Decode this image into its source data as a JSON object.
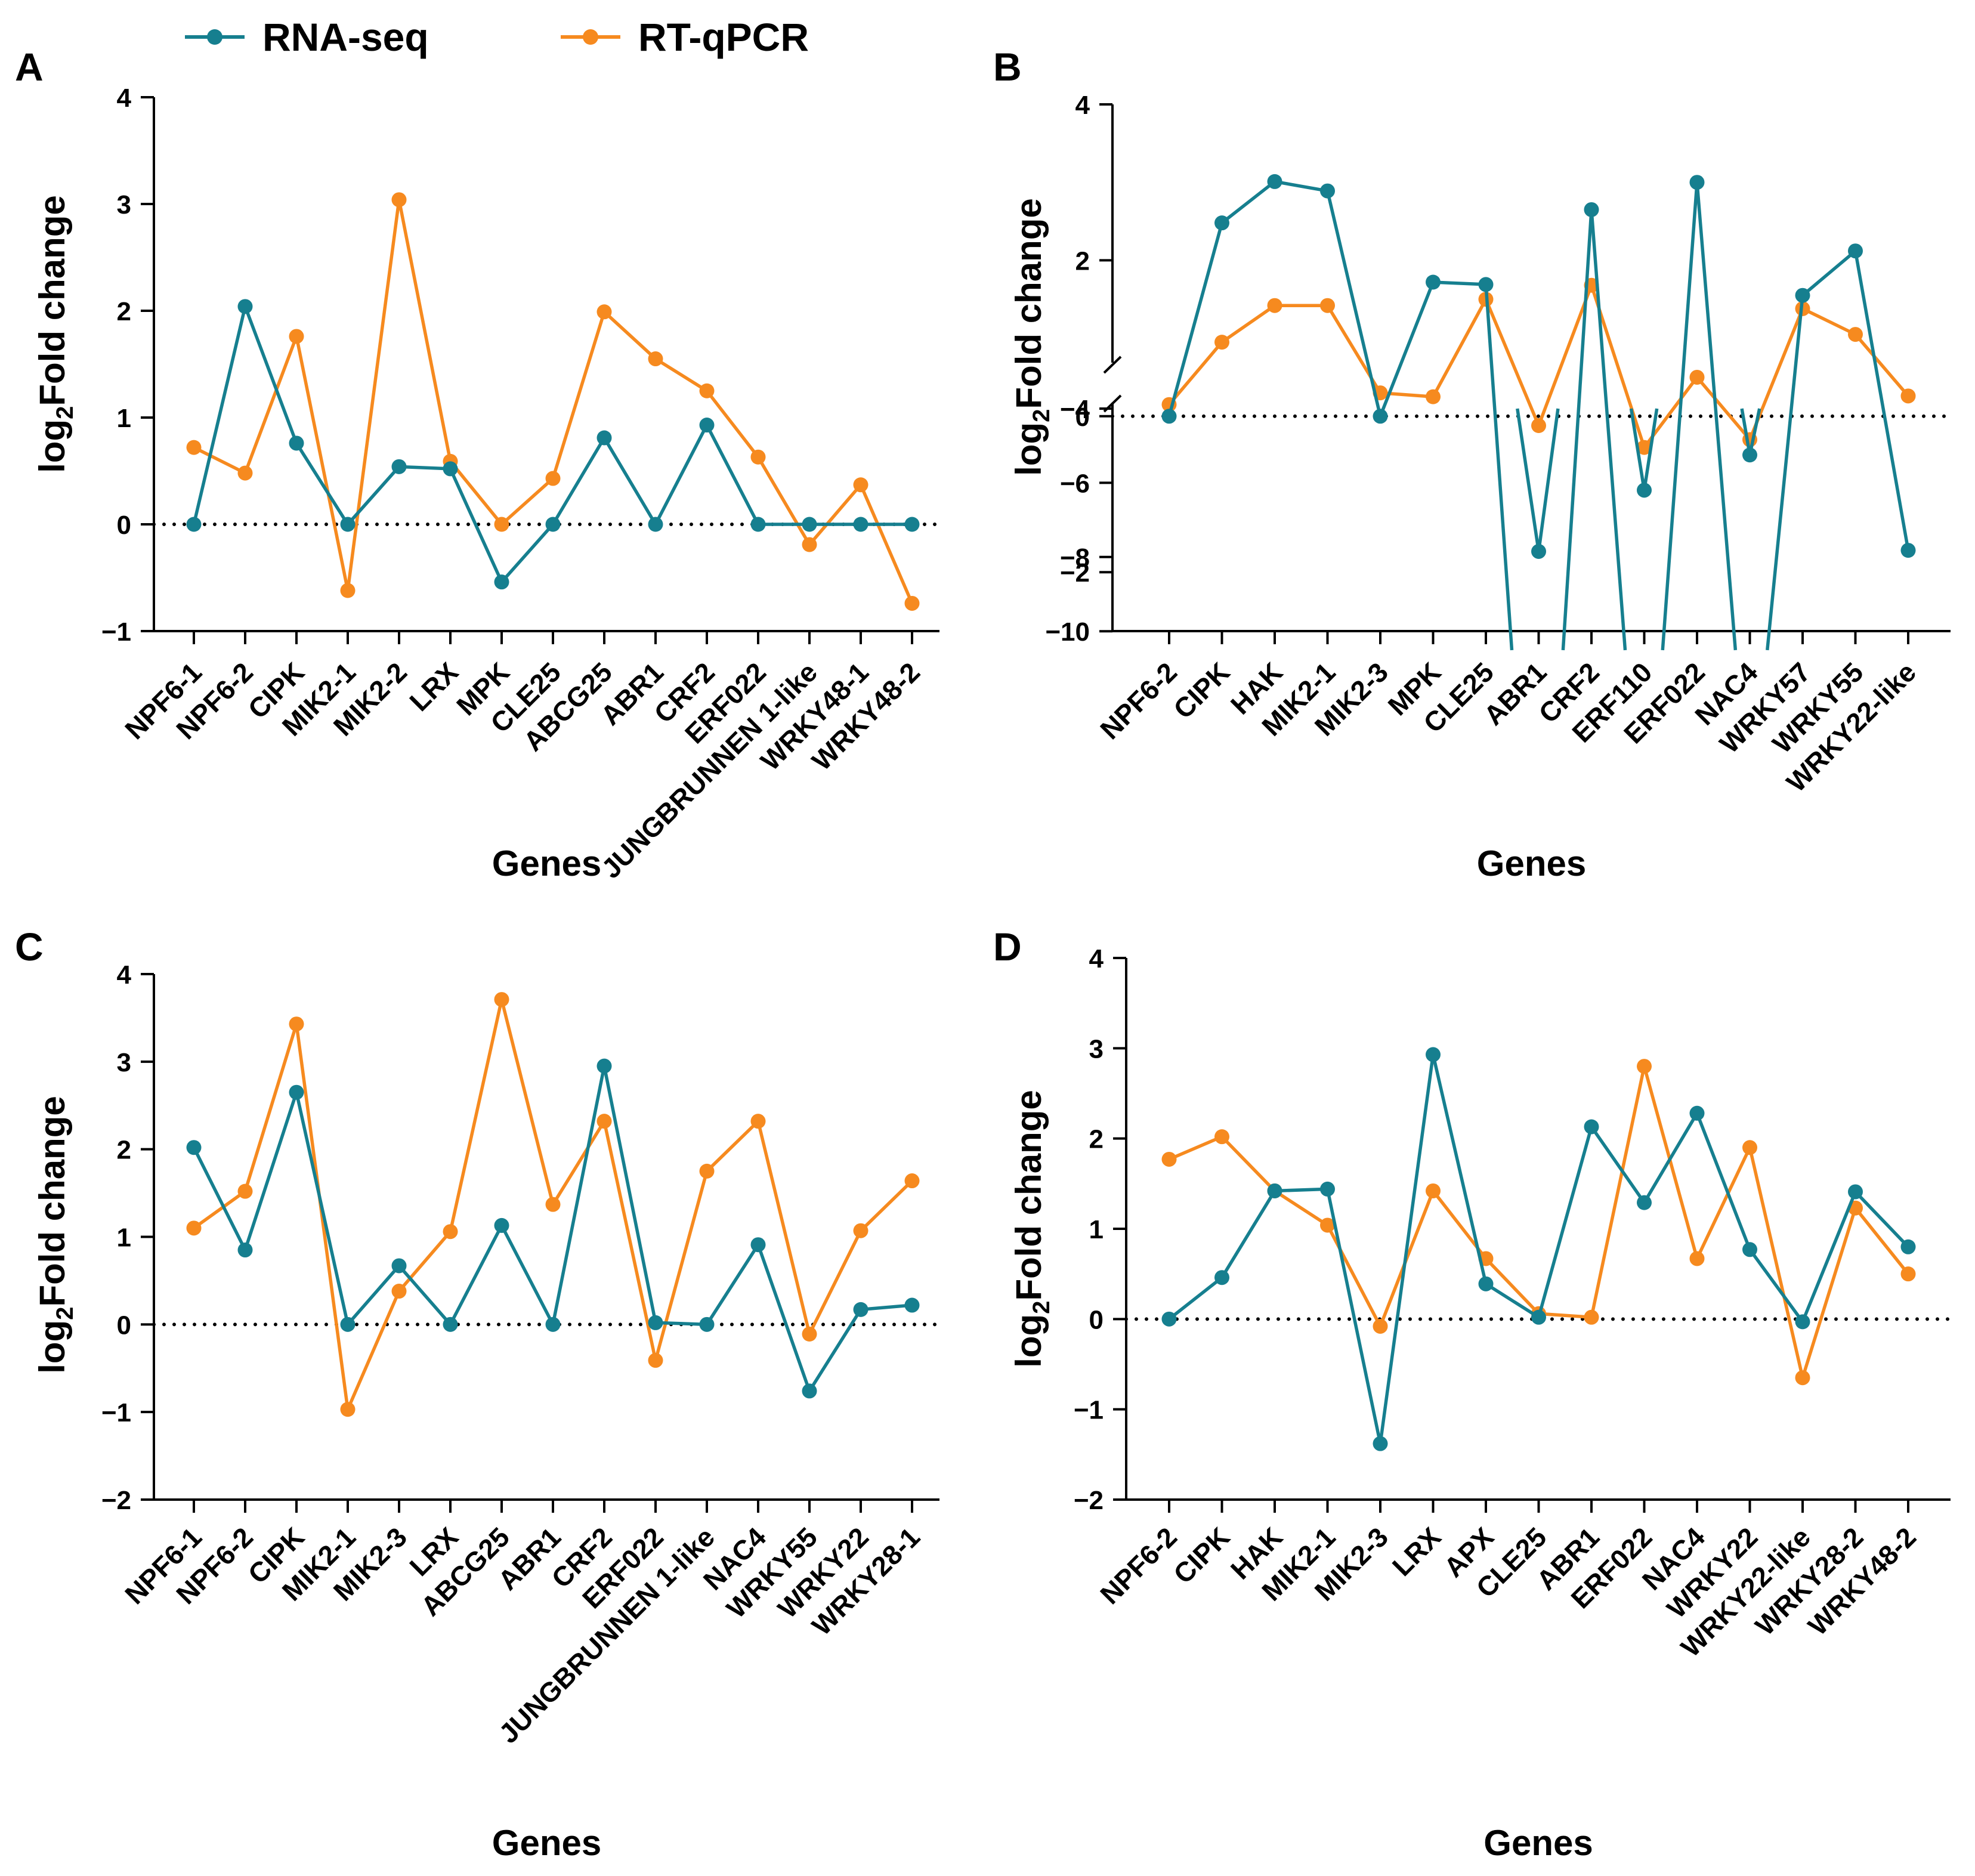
{
  "legend": [
    {
      "name": "RNA-seq",
      "color": "#167f8f"
    },
    {
      "name": "RT-qPCR",
      "color": "#f68a1f"
    }
  ],
  "chart_data": [
    {
      "panel": "A",
      "type": "line",
      "xlabel": "Genes",
      "ylabel_main": "log",
      "ylabel_sub": "2",
      "ylabel_rest": "Fold change",
      "ylim": [
        -1,
        4
      ],
      "yticks": [
        "−1",
        "0",
        "1",
        "2",
        "3",
        "4"
      ],
      "categories": [
        "NPF6-1",
        "NPF6-2",
        "CIPK",
        "MIK2-1",
        "MIK2-2",
        "LRX",
        "MPK",
        "CLE25",
        "ABCG25",
        "ABR1",
        "CRF2",
        "ERF022",
        "JUNGBRUNNEN 1-like",
        "WRKY48-1",
        "WRKY48-2"
      ],
      "series": [
        {
          "name": "RNA-seq",
          "values": [
            0,
            2.04,
            0.76,
            0,
            0.54,
            0.52,
            -0.54,
            0,
            0.81,
            0,
            0.93,
            0,
            0,
            0,
            0
          ]
        },
        {
          "name": "RT-qPCR",
          "values": [
            0.72,
            0.48,
            1.76,
            -0.62,
            3.04,
            0.59,
            0,
            0.43,
            1.99,
            1.55,
            1.25,
            0.63,
            -0.19,
            0.37,
            -0.74
          ]
        }
      ]
    },
    {
      "panel": "B",
      "type": "line",
      "xlabel": "Genes",
      "ylabel_main": "log",
      "ylabel_sub": "2",
      "ylabel_rest": "Fold change",
      "ylim": [
        -10,
        4
      ],
      "axis_break": [
        -3,
        -4
      ],
      "yticks": [
        "−10",
        "−8",
        "−6",
        "−4",
        "−2",
        "0",
        "2",
        "4"
      ],
      "categories": [
        "NPF6-2",
        "CIPK",
        "HAK",
        "MIK2-1",
        "MIK2-3",
        "MPK",
        "CLE25",
        "ABR1",
        "CRF2",
        "ERF110",
        "ERF022",
        "NAC4",
        "WRKY57",
        "WRKY55",
        "WRKY22-like"
      ],
      "series": [
        {
          "name": "RNA-seq",
          "values": [
            0,
            2.48,
            3.01,
            2.89,
            0,
            1.72,
            1.69,
            -7.85,
            2.65,
            -6.2,
            3.0,
            -5.25,
            1.55,
            2.12,
            -1.72
          ]
        },
        {
          "name": "RT-qPCR",
          "values": [
            0.15,
            0.95,
            1.42,
            1.42,
            0.3,
            0.25,
            1.5,
            -0.12,
            1.68,
            -0.4,
            0.5,
            -0.3,
            1.38,
            1.05,
            0.26
          ]
        }
      ]
    },
    {
      "panel": "C",
      "type": "line",
      "xlabel": "Genes",
      "ylabel_main": "log",
      "ylabel_sub": "2",
      "ylabel_rest": "Fold change",
      "ylim": [
        -2,
        4
      ],
      "yticks": [
        "−2",
        "−1",
        "0",
        "1",
        "2",
        "3",
        "4"
      ],
      "categories": [
        "NPF6-1",
        "NPF6-2",
        "CIPK",
        "MIK2-1",
        "MIK2-3",
        "LRX",
        "ABCG25",
        "ABR1",
        "CRF2",
        "ERF022",
        "JUNGBRUNNEN 1-like",
        "NAC4",
        "WRKY55",
        "WRKY22",
        "WRKY28-1"
      ],
      "series": [
        {
          "name": "RNA-seq",
          "values": [
            2.02,
            0.85,
            2.65,
            0,
            0.67,
            0,
            1.13,
            0,
            2.95,
            0.02,
            0,
            0.91,
            -0.76,
            0.17,
            0.22
          ]
        },
        {
          "name": "RT-qPCR",
          "values": [
            1.1,
            1.52,
            3.43,
            -0.97,
            0.38,
            1.06,
            3.71,
            1.37,
            2.32,
            -0.41,
            1.75,
            2.32,
            -0.11,
            1.07,
            1.64
          ]
        }
      ]
    },
    {
      "panel": "D",
      "type": "line",
      "xlabel": "Genes",
      "ylabel_main": "log",
      "ylabel_sub": "2",
      "ylabel_rest": "Fold change",
      "ylim": [
        -2,
        4
      ],
      "yticks": [
        "−2",
        "−1",
        "0",
        "1",
        "2",
        "3",
        "4"
      ],
      "categories": [
        "NPF6-2",
        "CIPK",
        "HAK",
        "MIK2-1",
        "MIK2-3",
        "LRX",
        "APX",
        "CLE25",
        "ABR1",
        "ERF022",
        "NAC4",
        "WRKY22",
        "WRKY22-like",
        "WRKY28-2",
        "WRKY48-2"
      ],
      "series": [
        {
          "name": "RNA-seq",
          "values": [
            0,
            0.46,
            1.42,
            1.44,
            -1.38,
            2.93,
            0.39,
            0.02,
            2.13,
            1.29,
            2.28,
            0.77,
            -0.03,
            1.41,
            0.8
          ]
        },
        {
          "name": "RT-qPCR",
          "values": [
            1.77,
            2.02,
            1.42,
            1.04,
            -0.08,
            1.42,
            0.67,
            0.06,
            0.02,
            2.8,
            0.67,
            1.9,
            -0.65,
            1.23,
            0.5
          ]
        }
      ]
    }
  ]
}
